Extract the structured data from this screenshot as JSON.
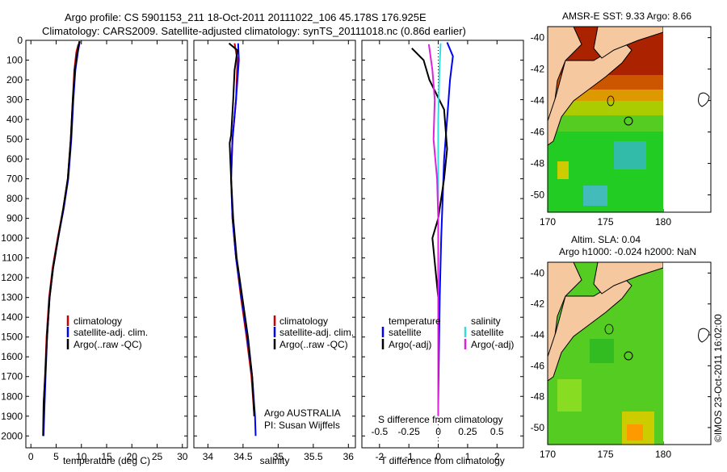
{
  "header": {
    "line1": "Argo profile: CS 5901153_211 18-Oct-2011 20111022_106 45.178S 176.925E",
    "line2": "Climatology: CARS2009. Satellite-adjusted climatology: synTS_20111018.nc (0.86d earlier)"
  },
  "colors": {
    "climatology": "#cc0000",
    "satellite": "#0000ff",
    "argo": "#000000",
    "sal_satellite": "#33dddd",
    "sal_argo": "#dd22dd",
    "land": "#f5c8a0"
  },
  "chart_data": [
    {
      "type": "line",
      "name": "temperature",
      "xlabel": "temperature (deg C)",
      "xlim": [
        -1,
        31
      ],
      "xticks": [
        0,
        5,
        10,
        15,
        20,
        25,
        30
      ],
      "ylim": [
        0,
        2060
      ],
      "yticks": [
        0,
        100,
        200,
        300,
        400,
        500,
        600,
        700,
        800,
        900,
        1000,
        1100,
        1200,
        1300,
        1400,
        1500,
        1600,
        1700,
        1800,
        1900,
        2000
      ],
      "legend": [
        "climatology",
        "satellite-adj. clim.",
        "Argo(..raw -QC)"
      ],
      "series": [
        {
          "name": "climatology",
          "color": "#cc0000",
          "points": [
            [
              9.4,
              20
            ],
            [
              9.0,
              60
            ],
            [
              8.6,
              150
            ],
            [
              8.3,
              300
            ],
            [
              7.9,
              500
            ],
            [
              7.3,
              700
            ],
            [
              6.4,
              850
            ],
            [
              5.3,
              1000
            ],
            [
              4.3,
              1150
            ],
            [
              3.6,
              1300
            ],
            [
              3.1,
              1500
            ],
            [
              2.8,
              1700
            ],
            [
              2.5,
              1840
            ]
          ]
        },
        {
          "name": "satellite-adj. clim.",
          "color": "#0000ff",
          "points": [
            [
              9.7,
              5
            ],
            [
              9.3,
              60
            ],
            [
              8.8,
              150
            ],
            [
              8.4,
              300
            ],
            [
              8.0,
              500
            ],
            [
              7.4,
              700
            ],
            [
              6.5,
              850
            ],
            [
              5.4,
              1000
            ],
            [
              4.4,
              1150
            ],
            [
              3.7,
              1300
            ],
            [
              3.2,
              1500
            ],
            [
              2.9,
              1700
            ],
            [
              2.7,
              1850
            ],
            [
              2.5,
              2000
            ]
          ]
        },
        {
          "name": "Argo(..raw -QC)",
          "color": "#000000",
          "points": [
            [
              9.6,
              5
            ],
            [
              9.2,
              60
            ],
            [
              8.7,
              150
            ],
            [
              8.3,
              300
            ],
            [
              7.9,
              500
            ],
            [
              7.3,
              700
            ],
            [
              6.4,
              850
            ],
            [
              5.4,
              1000
            ],
            [
              4.4,
              1150
            ],
            [
              3.7,
              1300
            ],
            [
              3.2,
              1500
            ],
            [
              2.8,
              1700
            ],
            [
              2.5,
              1850
            ],
            [
              2.4,
              2000
            ]
          ]
        }
      ]
    },
    {
      "type": "line",
      "name": "salinity",
      "xlabel": "salinity",
      "xlim": [
        33.8,
        36.1
      ],
      "xticks": [
        34,
        34.5,
        35,
        35.5,
        36
      ],
      "ylim": [
        0,
        2060
      ],
      "legend": [
        "climatology",
        "satellite-adj. clim.",
        "Argo(..raw -QC)"
      ],
      "annotation": [
        "Argo AUSTRALIA",
        "PI: Susan Wijffels"
      ],
      "series": [
        {
          "name": "climatology",
          "color": "#cc0000",
          "points": [
            [
              34.38,
              15
            ],
            [
              34.42,
              100
            ],
            [
              34.4,
              300
            ],
            [
              34.35,
              500
            ],
            [
              34.33,
              700
            ],
            [
              34.35,
              900
            ],
            [
              34.4,
              1100
            ],
            [
              34.47,
              1300
            ],
            [
              34.55,
              1500
            ],
            [
              34.62,
              1700
            ],
            [
              34.66,
              1900
            ]
          ]
        },
        {
          "name": "satellite-adj. clim.",
          "color": "#0000ff",
          "points": [
            [
              34.43,
              15
            ],
            [
              34.44,
              100
            ],
            [
              34.4,
              300
            ],
            [
              34.35,
              500
            ],
            [
              34.33,
              700
            ],
            [
              34.35,
              900
            ],
            [
              34.4,
              1100
            ],
            [
              34.48,
              1300
            ],
            [
              34.56,
              1500
            ],
            [
              34.63,
              1700
            ],
            [
              34.67,
              1900
            ],
            [
              34.68,
              2000
            ]
          ]
        },
        {
          "name": "Argo(..raw -QC)",
          "color": "#000000",
          "points": [
            [
              34.3,
              15
            ],
            [
              34.42,
              50
            ],
            [
              34.38,
              150
            ],
            [
              34.36,
              300
            ],
            [
              34.33,
              480
            ],
            [
              34.31,
              520
            ],
            [
              34.33,
              700
            ],
            [
              34.36,
              900
            ],
            [
              34.41,
              1100
            ],
            [
              34.49,
              1300
            ],
            [
              34.57,
              1500
            ],
            [
              34.63,
              1700
            ],
            [
              34.66,
              1900
            ]
          ]
        }
      ]
    },
    {
      "type": "line",
      "name": "differences",
      "xlabel": "T difference from climatology",
      "xlim": [
        -2.6,
        2.9
      ],
      "xticks": [
        -2,
        -1,
        0,
        1,
        2
      ],
      "top_axis_label": "S difference from climatology",
      "top_xlim": [
        -0.65,
        0.725
      ],
      "top_xticks": [
        -0.5,
        -0.25,
        0,
        0.25,
        0.5
      ],
      "top_xtick_labels": [
        "-0.5",
        "-0.25",
        "0",
        "0.25",
        "0.5"
      ],
      "ylim": [
        0,
        2060
      ],
      "legend_left_title": "temperature",
      "legend_right_title": "salinity",
      "legend_left": [
        "satellite",
        "Argo(-adj)"
      ],
      "legend_right": [
        "satellite",
        "Argo(-adj)"
      ],
      "series": [
        {
          "name": "T satellite",
          "color": "#0000ff",
          "points": [
            [
              0.3,
              10
            ],
            [
              0.5,
              80
            ],
            [
              0.4,
              200
            ],
            [
              0.3,
              400
            ],
            [
              0.2,
              600
            ],
            [
              0.15,
              800
            ],
            [
              0.1,
              1000
            ],
            [
              0.05,
              1300
            ],
            [
              0.02,
              1600
            ],
            [
              0,
              1850
            ]
          ]
        },
        {
          "name": "T Argo(-adj)",
          "color": "#000000",
          "points": [
            [
              -0.9,
              40
            ],
            [
              -0.5,
              100
            ],
            [
              -0.3,
              200
            ],
            [
              0.2,
              350
            ],
            [
              0.3,
              550
            ],
            [
              0.2,
              700
            ],
            [
              0,
              900
            ],
            [
              -0.2,
              1000
            ],
            [
              -0.1,
              1150
            ],
            [
              0,
              1300
            ],
            [
              0,
              1600
            ],
            [
              0,
              1850
            ]
          ]
        },
        {
          "name": "S satellite",
          "color": "#33dddd",
          "points": [
            [
              0.02,
              15
            ],
            [
              0.01,
              150
            ],
            [
              0,
              400
            ],
            [
              0,
              800
            ],
            [
              0,
              1200
            ],
            [
              0,
              1600
            ],
            [
              0,
              1900
            ]
          ]
        },
        {
          "name": "S Argo(-adj)",
          "color": "#dd22dd",
          "points": [
            [
              -0.08,
              20
            ],
            [
              -0.05,
              150
            ],
            [
              -0.03,
              300
            ],
            [
              -0.04,
              500
            ],
            [
              -0.01,
              700
            ],
            [
              0,
              900
            ],
            [
              0,
              1300
            ],
            [
              0,
              1700
            ],
            [
              0,
              1900
            ]
          ]
        }
      ]
    },
    {
      "type": "heatmap",
      "name": "sst_map",
      "title": "AMSR-E SST: 9.33 Argo: 8.66",
      "xticks": [
        170,
        175,
        180
      ],
      "yticks": [
        -40,
        -42,
        -44,
        -46,
        -48,
        -50
      ],
      "float_position": [
        176.925,
        -45.178
      ]
    },
    {
      "type": "heatmap",
      "name": "sla_map",
      "title_line1": "Altim. SLA: 0.04",
      "title_line2": "Argo h1000: -0.024 h2000: NaN",
      "xticks": [
        170,
        175,
        180
      ],
      "yticks": [
        -40,
        -42,
        -44,
        -46,
        -48,
        -50
      ],
      "float_position": [
        176.925,
        -45.178
      ]
    }
  ],
  "footer": {
    "credit": "©IMOS 23-Oct-2011 16:02:00"
  }
}
